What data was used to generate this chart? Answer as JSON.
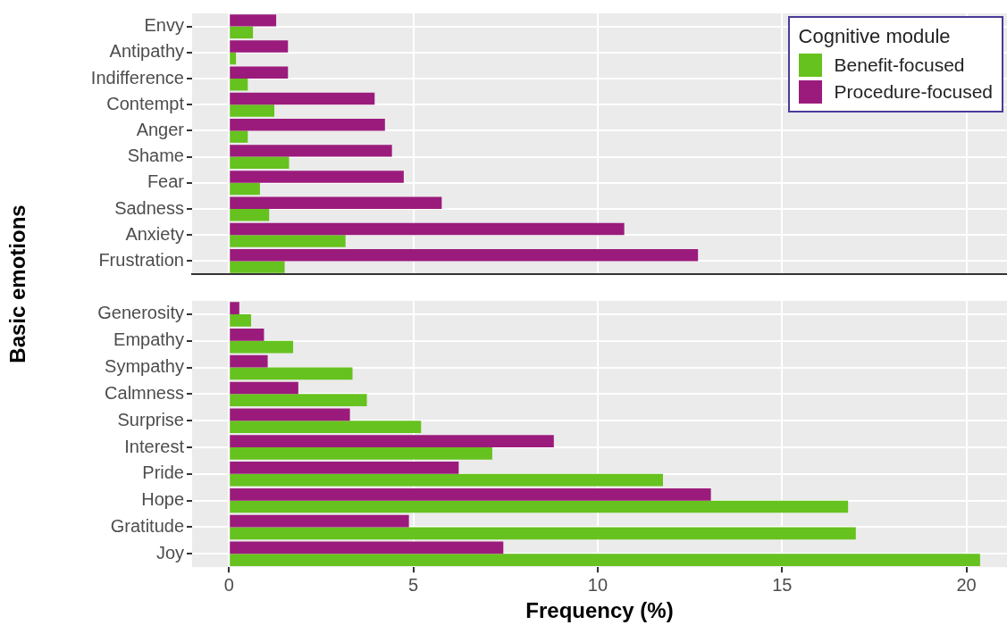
{
  "chart_data": [
    {
      "type": "bar",
      "orientation": "horizontal",
      "ylabel": "Basic emotions",
      "legend_title": "Cognitive module",
      "categories": [
        "Envy",
        "Antipathy",
        "Indifference",
        "Contempt",
        "Anger",
        "Shame",
        "Fear",
        "Sadness",
        "Anxiety",
        "Frustration"
      ],
      "series": [
        {
          "name": "Benefit-focused",
          "color": "#66c21e",
          "values": [
            0.65,
            0.19,
            0.51,
            1.23,
            0.51,
            1.63,
            0.84,
            1.09,
            3.16,
            1.51
          ]
        },
        {
          "name": "Procedure-focused",
          "color": "#9b1b7c",
          "values": [
            1.28,
            1.6,
            1.6,
            3.95,
            4.23,
            4.42,
            4.74,
            5.77,
            10.72,
            12.72
          ]
        }
      ],
      "xlim": [
        -1,
        21.1
      ],
      "xticks": [
        0,
        5,
        10,
        15,
        20
      ],
      "tick_labels": "y",
      "grid": true,
      "legend": "top right"
    },
    {
      "type": "bar",
      "orientation": "horizontal",
      "xlabel": "Frequency (%)",
      "categories": [
        "Generosity",
        "Empathy",
        "Sympathy",
        "Calmness",
        "Surprise",
        "Interest",
        "Pride",
        "Hope",
        "Gratitude",
        "Joy"
      ],
      "series": [
        {
          "color": "#66c21e",
          "values": [
            0.6,
            1.74,
            3.35,
            3.74,
            5.21,
            7.14,
            11.77,
            16.79,
            17.0,
            20.37
          ]
        },
        {
          "color": "#9b1b7c",
          "values": [
            0.28,
            0.95,
            1.05,
            1.88,
            3.28,
            8.81,
            6.23,
            13.07,
            4.88,
            7.44
          ]
        }
      ],
      "xlim": [
        -1,
        21.1
      ],
      "xticks": [
        0,
        5,
        10,
        15,
        20
      ],
      "grid": true
    }
  ]
}
